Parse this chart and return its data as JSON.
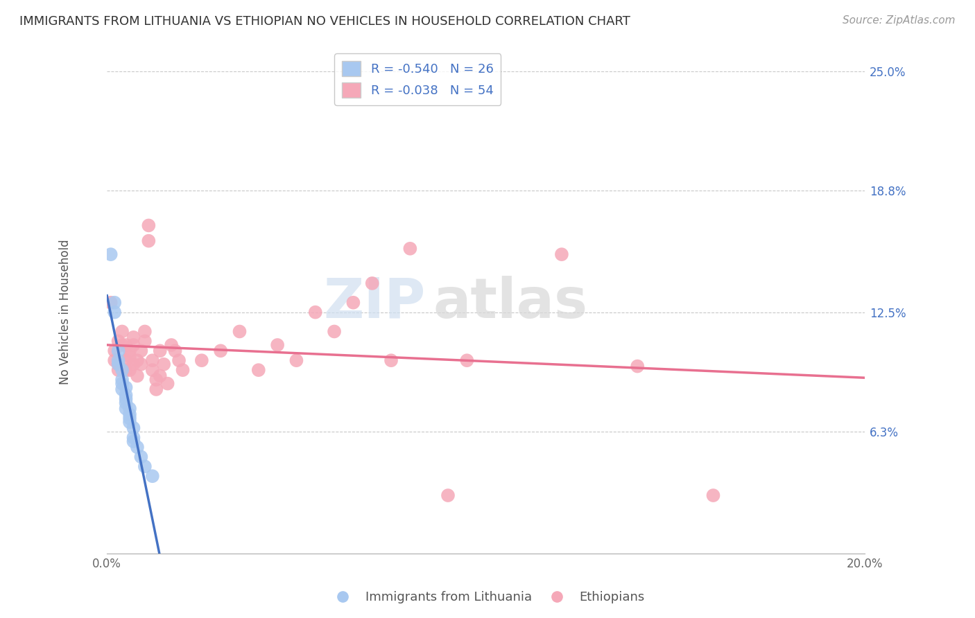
{
  "title": "IMMIGRANTS FROM LITHUANIA VS ETHIOPIAN NO VEHICLES IN HOUSEHOLD CORRELATION CHART",
  "source": "Source: ZipAtlas.com",
  "ylabel": "No Vehicles in Household",
  "legend_r1": "R = -0.540",
  "legend_n1": "N = 26",
  "legend_r2": "R = -0.038",
  "legend_n2": "N = 54",
  "blue_color": "#a8c8f0",
  "pink_color": "#f5a8b8",
  "blue_line_color": "#4472c4",
  "pink_line_color": "#e87090",
  "background_color": "#ffffff",
  "grid_color": "#c8c8c8",
  "watermark_zip": "ZIP",
  "watermark_atlas": "atlas",
  "xlim": [
    0.0,
    0.2
  ],
  "ylim": [
    0.0,
    0.25
  ],
  "ytick_vals": [
    0.0,
    0.063,
    0.125,
    0.188,
    0.25
  ],
  "ytick_labels": [
    "",
    "6.3%",
    "12.5%",
    "18.8%",
    "25.0%"
  ],
  "blue_scatter": [
    [
      0.001,
      0.155
    ],
    [
      0.002,
      0.13
    ],
    [
      0.002,
      0.125
    ],
    [
      0.003,
      0.105
    ],
    [
      0.003,
      0.1
    ],
    [
      0.003,
      0.098
    ],
    [
      0.004,
      0.09
    ],
    [
      0.004,
      0.088
    ],
    [
      0.004,
      0.095
    ],
    [
      0.004,
      0.085
    ],
    [
      0.005,
      0.08
    ],
    [
      0.005,
      0.078
    ],
    [
      0.005,
      0.075
    ],
    [
      0.005,
      0.082
    ],
    [
      0.005,
      0.086
    ],
    [
      0.006,
      0.072
    ],
    [
      0.006,
      0.068
    ],
    [
      0.006,
      0.075
    ],
    [
      0.006,
      0.07
    ],
    [
      0.007,
      0.065
    ],
    [
      0.007,
      0.06
    ],
    [
      0.007,
      0.058
    ],
    [
      0.008,
      0.055
    ],
    [
      0.009,
      0.05
    ],
    [
      0.01,
      0.045
    ],
    [
      0.012,
      0.04
    ]
  ],
  "pink_scatter": [
    [
      0.001,
      0.13
    ],
    [
      0.002,
      0.105
    ],
    [
      0.002,
      0.1
    ],
    [
      0.003,
      0.095
    ],
    [
      0.003,
      0.098
    ],
    [
      0.003,
      0.11
    ],
    [
      0.004,
      0.108
    ],
    [
      0.004,
      0.115
    ],
    [
      0.005,
      0.1
    ],
    [
      0.005,
      0.095
    ],
    [
      0.005,
      0.108
    ],
    [
      0.006,
      0.102
    ],
    [
      0.006,
      0.095
    ],
    [
      0.006,
      0.105
    ],
    [
      0.007,
      0.098
    ],
    [
      0.007,
      0.108
    ],
    [
      0.007,
      0.112
    ],
    [
      0.008,
      0.092
    ],
    [
      0.008,
      0.1
    ],
    [
      0.009,
      0.098
    ],
    [
      0.009,
      0.105
    ],
    [
      0.01,
      0.11
    ],
    [
      0.01,
      0.115
    ],
    [
      0.011,
      0.162
    ],
    [
      0.011,
      0.17
    ],
    [
      0.012,
      0.1
    ],
    [
      0.012,
      0.095
    ],
    [
      0.013,
      0.09
    ],
    [
      0.013,
      0.085
    ],
    [
      0.014,
      0.105
    ],
    [
      0.014,
      0.092
    ],
    [
      0.015,
      0.098
    ],
    [
      0.016,
      0.088
    ],
    [
      0.017,
      0.108
    ],
    [
      0.018,
      0.105
    ],
    [
      0.019,
      0.1
    ],
    [
      0.02,
      0.095
    ],
    [
      0.025,
      0.1
    ],
    [
      0.03,
      0.105
    ],
    [
      0.035,
      0.115
    ],
    [
      0.04,
      0.095
    ],
    [
      0.045,
      0.108
    ],
    [
      0.05,
      0.1
    ],
    [
      0.055,
      0.125
    ],
    [
      0.06,
      0.115
    ],
    [
      0.065,
      0.13
    ],
    [
      0.07,
      0.14
    ],
    [
      0.075,
      0.1
    ],
    [
      0.08,
      0.158
    ],
    [
      0.09,
      0.03
    ],
    [
      0.095,
      0.1
    ],
    [
      0.12,
      0.155
    ],
    [
      0.14,
      0.097
    ],
    [
      0.16,
      0.03
    ]
  ]
}
